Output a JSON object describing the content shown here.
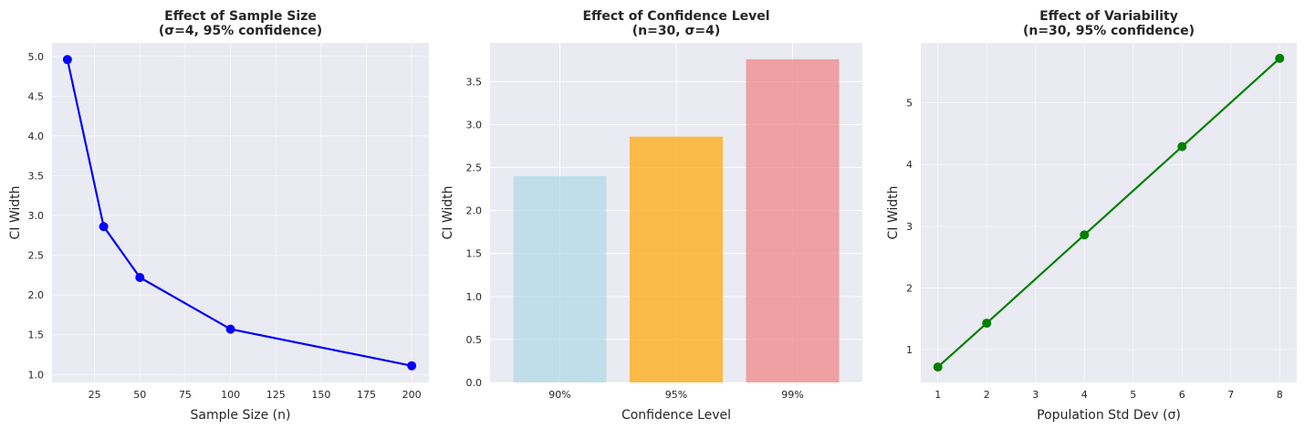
{
  "chart_data": [
    {
      "type": "line",
      "title": "Effect of Sample Size",
      "subtitle": "(σ=4, 95% confidence)",
      "xlabel": "Sample Size (n)",
      "ylabel": "CI Width",
      "x": [
        10,
        30,
        50,
        100,
        200
      ],
      "values": [
        4.96,
        2.86,
        2.22,
        1.57,
        1.11
      ],
      "xlim": [
        1.5,
        209.5
      ],
      "ylim": [
        0.9,
        5.17
      ],
      "xticks": [
        25,
        50,
        75,
        100,
        125,
        150,
        175,
        200
      ],
      "yticks": [
        1.0,
        1.5,
        2.0,
        2.5,
        3.0,
        3.5,
        4.0,
        4.5,
        5.0
      ],
      "ytick_labels": [
        "1.0",
        "1.5",
        "2.0",
        "2.5",
        "3.0",
        "3.5",
        "4.0",
        "4.5",
        "5.0"
      ],
      "color": "#0000ff",
      "marker": "circle",
      "grid": true
    },
    {
      "type": "bar",
      "title": "Effect of Confidence Level",
      "subtitle": "(n=30, σ=4)",
      "xlabel": "Confidence Level",
      "ylabel": "CI Width",
      "categories": [
        "90%",
        "95%",
        "99%"
      ],
      "values": [
        2.4,
        2.86,
        3.76
      ],
      "colors": [
        "#add8e6",
        "#ffa500",
        "#f08080"
      ],
      "ylim": [
        0,
        3.95
      ],
      "yticks": [
        0.0,
        0.5,
        1.0,
        1.5,
        2.0,
        2.5,
        3.0,
        3.5
      ],
      "ytick_labels": [
        "0.0",
        "0.5",
        "1.0",
        "1.5",
        "2.0",
        "2.5",
        "3.0",
        "3.5"
      ],
      "grid": true
    },
    {
      "type": "line",
      "title": "Effect of Variability",
      "subtitle": "(n=30, 95% confidence)",
      "xlabel": "Population Std Dev (σ)",
      "ylabel": "CI Width",
      "x": [
        1,
        2,
        4,
        6,
        8
      ],
      "values": [
        0.72,
        1.43,
        2.86,
        4.29,
        5.72
      ],
      "xlim": [
        0.65,
        8.35
      ],
      "ylim": [
        0.47,
        5.97
      ],
      "xticks": [
        1,
        2,
        3,
        4,
        5,
        6,
        7,
        8
      ],
      "yticks": [
        1,
        2,
        3,
        4,
        5
      ],
      "ytick_labels": [
        "1",
        "2",
        "3",
        "4",
        "5"
      ],
      "color": "#008000",
      "marker": "circle",
      "grid": true
    }
  ],
  "style": {
    "axes_background": "#eaeaf2",
    "grid_color": "#ffffff",
    "text_color": "#262626"
  }
}
